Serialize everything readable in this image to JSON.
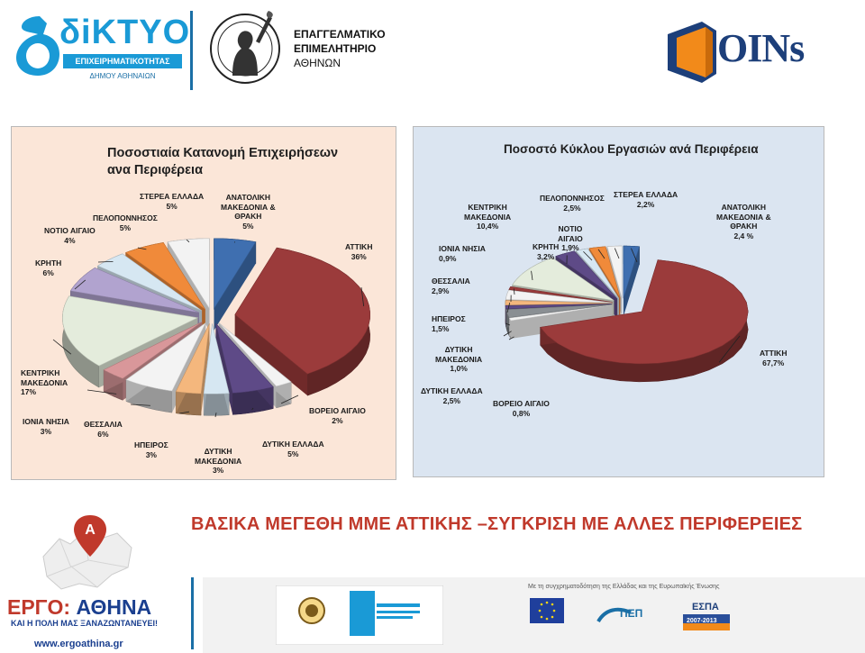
{
  "header": {
    "diktyo_word": "δiKTYO",
    "diktyo_band": "ΕΠΙΧΕΙΡΗΜΑΤΙΚΟΤΗΤΑΣ",
    "diktyo_sub": "ΔΗΜΟΥ ΑΘΗΝΑΙΩΝ",
    "chamber_line1": "ΕΠΑΓΓΕΛΜΑΤΙΚΟ",
    "chamber_line2": "ΕΠΙΜΕΛΗΤΗΡΙΟ",
    "chamber_line3": "ΑΘΗΝΩΝ",
    "coins_word": "OINs"
  },
  "heading": "ΒΑΣΙΚΑ ΜΕΓΕΘΗ ΜΜΕ ΑΤΤΙΚΗΣ –ΣΥΓΚΡΙΣΗ ΜΕ ΑΛΛΕΣ ΠΕΡΙΦΕΡΕΙΕΣ",
  "footer": {
    "ergo_line1": "ΕΡΓΟ:",
    "ergo_line2": "ΑΘΗΝΑ",
    "ergo_sub": "ΚΑΙ Η ΠΟΛΗ ΜΑΣ ΞΑΝΑΖΩΝΤΑΝΕΥΕΙ!",
    "ergo_url": "www.ergoathina.gr",
    "cofund_note": "Με τη συγχρηματοδότηση της Ελλάδας και της Ευρωπαϊκής Ένωσης",
    "espa_label": "ΕΣΠΑ",
    "espa_years": "2007-2013",
    "pep_label": "ΠΕΠ"
  },
  "colors": {
    "attiki": "#9b3b3b",
    "blue": "#3f6fb0",
    "purple": "#5e4a87",
    "gray": "#8a8f93",
    "lightblue": "#d6e7f2",
    "tan": "#f4b77d",
    "white": "#f3f3f3",
    "pink": "#d9979a",
    "sage": "#e4ecdc",
    "lavender": "#b1a3cf",
    "orange": "#f08a3a",
    "panel_left_bg": "#fbe6d8",
    "panel_right_bg": "#dbe5f1",
    "heading": "#c0392b"
  },
  "chart_data": [
    {
      "type": "pie",
      "style": "3d-exploded",
      "title_line1": "Ποσοστιαία Κατανομή Επιχειρήσεων",
      "title_line2": "ανα Περιφέρεια",
      "unit": "%",
      "slices": [
        {
          "name": "ΑΝΑΤΟΛΙΚΗ ΜΑΚΕΔΟΝΙΑ & ΘΡΑΚΗ",
          "value": 5,
          "label": "5%",
          "color_key": "blue"
        },
        {
          "name": "ΑΤΤΙΚΗ",
          "value": 36,
          "label": "36%",
          "color_key": "attiki"
        },
        {
          "name": "ΒΟΡΕΙΟ ΑΙΓΑΙΟ",
          "value": 2,
          "label": "2%",
          "color_key": "white"
        },
        {
          "name": "ΔΥΤΙΚΗ ΕΛΛΑΔΑ",
          "value": 5,
          "label": "5%",
          "color_key": "purple"
        },
        {
          "name": "ΔΥΤΙΚΗ ΜΑΚΕΔΟΝΙΑ",
          "value": 3,
          "label": "3%",
          "color_key": "lightblue"
        },
        {
          "name": "ΗΠΕΙΡΟΣ",
          "value": 3,
          "label": "3%",
          "color_key": "tan"
        },
        {
          "name": "ΘΕΣΣΑΛΙΑ",
          "value": 6,
          "label": "6%",
          "color_key": "white"
        },
        {
          "name": "ΙΟΝΙΑ ΝΗΣΙΑ",
          "value": 3,
          "label": "3%",
          "color_key": "pink"
        },
        {
          "name": "ΚΕΝΤΡΙΚΗ ΜΑΚΕΔΟΝΙΑ",
          "value": 17,
          "label": "17%",
          "color_key": "sage"
        },
        {
          "name": "ΚΡΗΤΗ",
          "value": 6,
          "label": "6%",
          "color_key": "lavender"
        },
        {
          "name": "ΝΟΤΙΟ ΑΙΓΑΙΟ",
          "value": 4,
          "label": "4%",
          "color_key": "lightblue"
        },
        {
          "name": "ΠΕΛΟΠΟΝΝΗΣΟΣ",
          "value": 5,
          "label": "5%",
          "color_key": "orange"
        },
        {
          "name": "ΣΤΕΡΕΑ ΕΛΛΑΔΑ",
          "value": 5,
          "label": "5%",
          "color_key": "white"
        }
      ]
    },
    {
      "type": "pie",
      "style": "3d-exploded",
      "title": "Ποσοστό Κύκλου Εργασιών ανά Περιφέρεια",
      "unit": "%",
      "slices": [
        {
          "name": "ΑΝΑΤΟΛΙΚΗ ΜΑΚΕΔΟΝΙΑ & ΘΡΑΚΗ",
          "value": 2.4,
          "label": "2,4 %",
          "color_key": "blue"
        },
        {
          "name": "ΑΤΤΙΚΗ",
          "value": 67.7,
          "label": "67,7%",
          "color_key": "attiki"
        },
        {
          "name": "ΒΟΡΕΙΟ ΑΙΓΑΙΟ",
          "value": 0.8,
          "label": "0,8%",
          "color_key": "white"
        },
        {
          "name": "ΔΥΤΙΚΗ ΕΛΛΑΔΑ",
          "value": 2.5,
          "label": "2,5%",
          "color_key": "gray"
        },
        {
          "name": "ΔΥΤΙΚΗ ΜΑΚΕΔΟΝΙΑ",
          "value": 1.0,
          "label": "1,0%",
          "color_key": "purple"
        },
        {
          "name": "ΗΠΕΙΡΟΣ",
          "value": 1.5,
          "label": "1,5%",
          "color_key": "tan"
        },
        {
          "name": "ΘΕΣΣΑΛΙΑ",
          "value": 2.9,
          "label": "2,9%",
          "color_key": "white"
        },
        {
          "name": "ΙΟΝΙΑ ΝΗΣΙΑ",
          "value": 0.9,
          "label": "0,9%",
          "color_key": "attiki"
        },
        {
          "name": "ΚΕΝΤΡΙΚΗ ΜΑΚΕΔΟΝΙΑ",
          "value": 10.4,
          "label": "10,4%",
          "color_key": "sage"
        },
        {
          "name": "ΚΡΗΤΗ",
          "value": 3.2,
          "label": "3,2%",
          "color_key": "purple"
        },
        {
          "name": "ΝΟΤΙΟ ΑΙΓΑΙΟ",
          "value": 1.9,
          "label": "1,9%",
          "color_key": "lightblue"
        },
        {
          "name": "ΠΕΛΟΠΟΝΝΗΣΟΣ",
          "value": 2.5,
          "label": "2,5%",
          "color_key": "orange"
        },
        {
          "name": "ΣΤΕΡΕΑ ΕΛΛΑΔΑ",
          "value": 2.2,
          "label": "2,2%",
          "color_key": "white"
        }
      ]
    }
  ]
}
